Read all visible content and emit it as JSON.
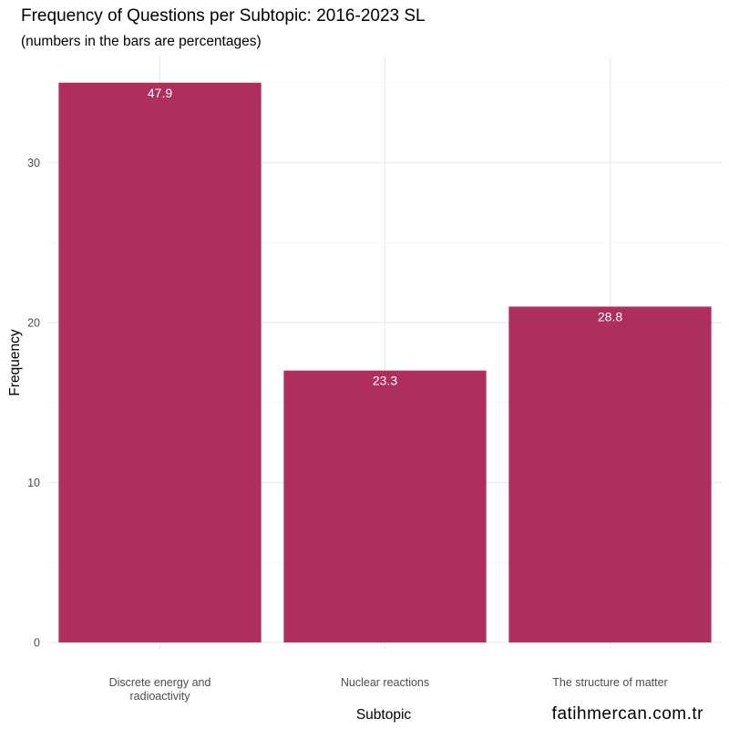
{
  "chart_data": {
    "type": "bar",
    "title": "Frequency of Questions per Subtopic: 2016-2023 SL",
    "subtitle": "(numbers in the bars are percentages)",
    "xlabel": "Subtopic",
    "ylabel": "Frequency",
    "categories": [
      "Discrete energy and radioactivity",
      "Nuclear reactions",
      "The structure of matter"
    ],
    "category_label_lines": [
      [
        "Discrete energy and",
        "radioactivity"
      ],
      [
        "Nuclear reactions"
      ],
      [
        "The structure of matter"
      ]
    ],
    "values": [
      35,
      17,
      21
    ],
    "bar_labels": [
      "47.9",
      "23.3",
      "28.8"
    ],
    "ylim": [
      0,
      36
    ],
    "yticks": [
      0,
      10,
      20,
      30
    ],
    "yticks_minor": [
      5,
      15,
      25,
      35
    ],
    "grid": true,
    "bar_color": "#AE2F5D",
    "watermark": "fatihmercan.com.tr"
  }
}
